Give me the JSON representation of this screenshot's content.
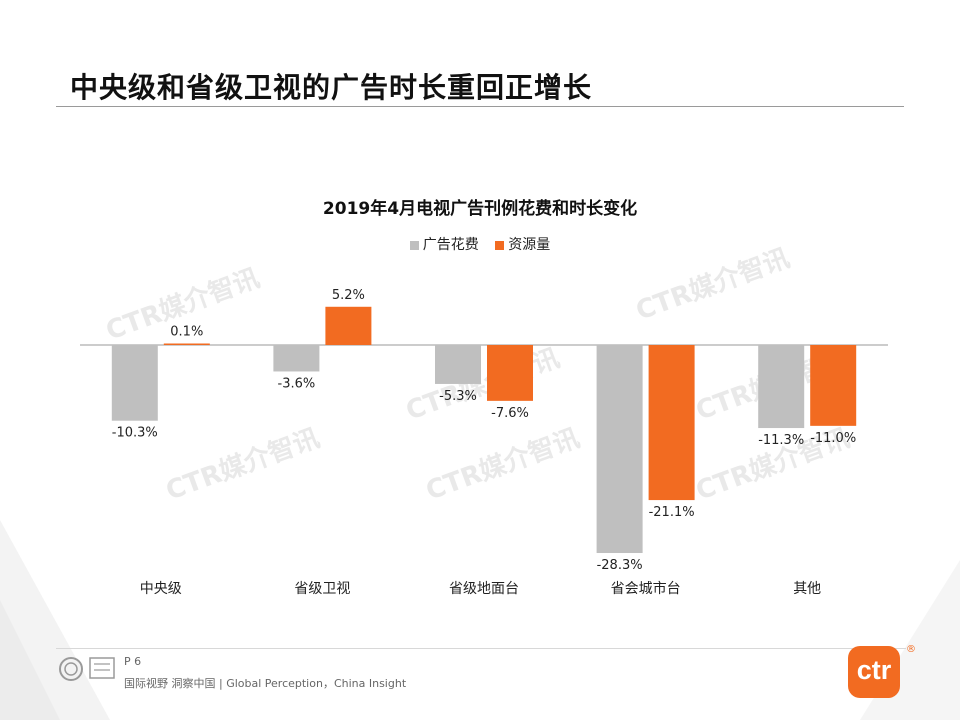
{
  "slide": {
    "title": "中央级和省级卫视的广告时长重回正增长",
    "page_number": "P 6",
    "tagline": "国际视野 洞察中国 | Global Perception，China Insight",
    "logo_text": "ctr",
    "logo_mark": "®",
    "watermark_text": "CTR媒介智讯"
  },
  "colors": {
    "ad_spend": "#bfbfbf",
    "airtime": "#f26b21",
    "axis": "#9a9a9a"
  },
  "chart_data": {
    "type": "bar",
    "title": "2019年4月电视广告刊例花费和时长变化",
    "categories": [
      "中央级",
      "省级卫视",
      "省级地面台",
      "省会城市台",
      "其他"
    ],
    "series": [
      {
        "name": "广告花费",
        "values": [
          -10.3,
          -3.6,
          -5.3,
          -28.3,
          -11.3
        ],
        "labels": [
          "-10.3%",
          "-3.6%",
          "-5.3%",
          "-28.3%",
          "-11.3%"
        ]
      },
      {
        "name": "资源量",
        "values": [
          0.1,
          5.2,
          -7.6,
          -21.1,
          -11.0
        ],
        "labels": [
          "0.1%",
          "5.2%",
          "-7.6%",
          "-21.1%",
          "-11.0%"
        ]
      }
    ],
    "legend_position": "top-center",
    "grid": false
  }
}
